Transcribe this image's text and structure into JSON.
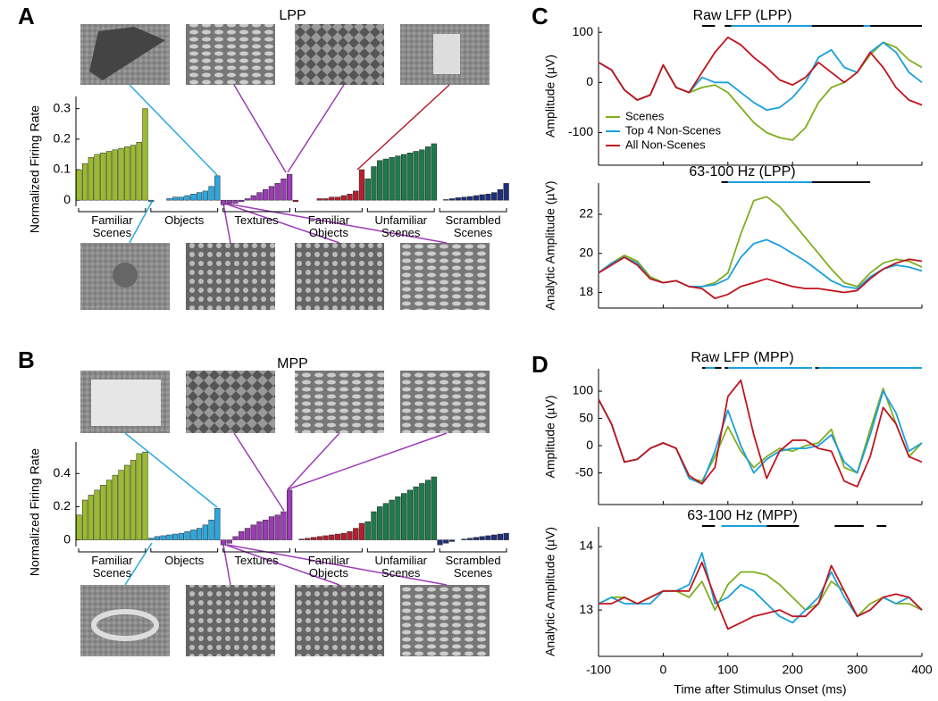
{
  "chart_data": [
    {
      "type": "grouped-bar",
      "panel": "A",
      "title": "LPP",
      "ylabel": "Normalized Firing Rate",
      "ylim": [
        -0.02,
        0.34
      ],
      "yticks": [
        0,
        0.1,
        0.2,
        0.3
      ],
      "groups": [
        {
          "name": "Familiar Scenes",
          "color": "#9bbb2a",
          "values": [
            0.1,
            0.12,
            0.14,
            0.15,
            0.155,
            0.16,
            0.165,
            0.17,
            0.175,
            0.18,
            0.19,
            0.3
          ]
        },
        {
          "name": "Objects",
          "color": "#2aa8e0",
          "values": [
            -0.005,
            0.0,
            0.0,
            0.005,
            0.01,
            0.01,
            0.015,
            0.02,
            0.025,
            0.03,
            0.045,
            0.08
          ]
        },
        {
          "name": "Textures",
          "color": "#9b3cb5",
          "values": [
            -0.015,
            -0.01,
            -0.01,
            -0.005,
            0.005,
            0.015,
            0.025,
            0.035,
            0.045,
            0.055,
            0.07,
            0.085
          ]
        },
        {
          "name": "Familiar Objects",
          "color": "#b5202e",
          "values": [
            -0.005,
            0,
            0,
            0,
            0.005,
            0.005,
            0.01,
            0.01,
            0.015,
            0.02,
            0.03,
            0.1
          ]
        },
        {
          "name": "Unfamiliar Scenes",
          "color": "#1e7a4a",
          "values": [
            0.07,
            0.11,
            0.13,
            0.135,
            0.14,
            0.145,
            0.15,
            0.155,
            0.16,
            0.165,
            0.175,
            0.185
          ]
        },
        {
          "name": "Scrambled Scenes",
          "color": "#1f2f7a",
          "values": [
            0,
            0.002,
            0.005,
            0.008,
            0.01,
            0.012,
            0.015,
            0.018,
            0.02,
            0.025,
            0.035,
            0.055
          ]
        }
      ]
    },
    {
      "type": "grouped-bar",
      "panel": "B",
      "title": "MPP",
      "ylabel": "Normalized Firing Rate",
      "ylim": [
        -0.04,
        0.59
      ],
      "yticks": [
        0,
        0.2,
        0.4
      ],
      "groups": [
        {
          "name": "Familiar Scenes",
          "color": "#9bbb2a",
          "values": [
            0.15,
            0.24,
            0.27,
            0.3,
            0.33,
            0.36,
            0.39,
            0.42,
            0.45,
            0.48,
            0.52,
            0.53
          ]
        },
        {
          "name": "Objects",
          "color": "#2aa8e0",
          "values": [
            0.01,
            0.02,
            0.025,
            0.03,
            0.035,
            0.04,
            0.05,
            0.06,
            0.07,
            0.09,
            0.12,
            0.19
          ]
        },
        {
          "name": "Textures",
          "color": "#9b3cb5",
          "values": [
            -0.03,
            -0.02,
            0.02,
            0.05,
            0.07,
            0.09,
            0.11,
            0.12,
            0.14,
            0.15,
            0.17,
            0.3
          ]
        },
        {
          "name": "Familiar Objects",
          "color": "#b5202e",
          "values": [
            0,
            0.005,
            0.01,
            0.015,
            0.02,
            0.025,
            0.03,
            0.035,
            0.04,
            0.05,
            0.07,
            0.1
          ]
        },
        {
          "name": "Unfamiliar Scenes",
          "color": "#1e7a4a",
          "values": [
            0.11,
            0.17,
            0.2,
            0.22,
            0.24,
            0.26,
            0.28,
            0.3,
            0.32,
            0.34,
            0.36,
            0.38
          ]
        },
        {
          "name": "Scrambled Scenes",
          "color": "#1f2f7a",
          "values": [
            -0.03,
            -0.02,
            -0.01,
            0,
            0.005,
            0.01,
            0.015,
            0.02,
            0.025,
            0.03,
            0.035,
            0.04
          ]
        }
      ]
    },
    {
      "type": "line",
      "panel": "C",
      "title": "Raw LFP (LPP)",
      "ylabel": "Amplitude (µV)",
      "x": [
        -100,
        -80,
        -60,
        -40,
        -20,
        0,
        20,
        40,
        60,
        80,
        100,
        120,
        140,
        160,
        180,
        200,
        220,
        240,
        260,
        280,
        300,
        320,
        340,
        360,
        380,
        400
      ],
      "xlim": [
        -100,
        400
      ],
      "xticks": [
        -100,
        0,
        100,
        200,
        300,
        400
      ],
      "xtick_labels": false,
      "ylim": [
        -165,
        111
      ],
      "yticks": [
        -100,
        0,
        100
      ],
      "legend": "lower left",
      "series": [
        {
          "name": "Scenes",
          "color": "#7fae1e",
          "values": [
            40,
            25,
            -15,
            -35,
            -25,
            35,
            -10,
            -20,
            -10,
            -5,
            -20,
            -50,
            -80,
            -100,
            -110,
            -115,
            -90,
            -40,
            -10,
            0,
            20,
            55,
            80,
            70,
            45,
            30
          ]
        },
        {
          "name": "Top 4 Non-Scenes",
          "color": "#1a9fdc",
          "values": [
            40,
            25,
            -15,
            -35,
            -25,
            35,
            -10,
            -20,
            10,
            0,
            0,
            -20,
            -40,
            -55,
            -50,
            -30,
            0,
            50,
            65,
            30,
            20,
            60,
            80,
            60,
            20,
            0
          ]
        },
        {
          "name": "All Non-Scenes",
          "color": "#c0151f",
          "values": [
            40,
            25,
            -15,
            -35,
            -25,
            35,
            -10,
            -20,
            20,
            60,
            90,
            75,
            50,
            30,
            5,
            -5,
            10,
            40,
            20,
            0,
            20,
            60,
            30,
            -10,
            -35,
            -45
          ]
        }
      ],
      "sig_bars": [
        {
          "color": "#000000",
          "start": 60,
          "end": 80
        },
        {
          "color": "#000000",
          "start": 95,
          "end": 310
        },
        {
          "color": "#1a9fdc",
          "start": 105,
          "end": 230
        },
        {
          "color": "#1a9fdc",
          "start": 310,
          "end": 400
        },
        {
          "color": "#000000",
          "start": 320,
          "end": 400
        }
      ]
    },
    {
      "type": "line",
      "panel": null,
      "title": "63-100 Hz (LPP)",
      "ylabel": "Analytic Amplitude (µV)",
      "x": [
        -100,
        -80,
        -60,
        -40,
        -20,
        0,
        20,
        40,
        60,
        80,
        100,
        120,
        140,
        160,
        180,
        200,
        220,
        240,
        260,
        280,
        300,
        320,
        340,
        360,
        380,
        400
      ],
      "xlim": [
        -100,
        400
      ],
      "xticks": [
        -100,
        0,
        100,
        200,
        300,
        400
      ],
      "xtick_labels": false,
      "ylim": [
        17.2,
        23.6
      ],
      "yticks": [
        18,
        20,
        22
      ],
      "series": [
        {
          "color": "#7fae1e",
          "values": [
            19,
            19.5,
            19.9,
            19.6,
            18.8,
            18.5,
            18.6,
            18.3,
            18.3,
            18.5,
            19,
            21,
            22.7,
            22.9,
            22.4,
            21.6,
            20.8,
            20,
            19.2,
            18.5,
            18.3,
            19,
            19.5,
            19.7,
            19.6,
            19.3
          ]
        },
        {
          "color": "#1a9fdc",
          "values": [
            19,
            19.5,
            19.8,
            19.5,
            18.7,
            18.5,
            18.6,
            18.3,
            18.3,
            18.4,
            18.7,
            19.8,
            20.5,
            20.7,
            20.4,
            20,
            19.6,
            19.1,
            18.6,
            18.3,
            18.2,
            18.8,
            19.2,
            19.4,
            19.3,
            19.1
          ]
        },
        {
          "color": "#c0151f",
          "values": [
            19,
            19.4,
            19.8,
            19.4,
            18.7,
            18.5,
            18.6,
            18.3,
            18.2,
            17.7,
            17.9,
            18.3,
            18.5,
            18.7,
            18.5,
            18.3,
            18.2,
            18.2,
            18.1,
            18,
            18.1,
            18.7,
            19.2,
            19.5,
            19.7,
            19.6
          ]
        }
      ],
      "sig_bars": [
        {
          "color": "#000000",
          "start": 90,
          "end": 320
        },
        {
          "color": "#1a9fdc",
          "start": 100,
          "end": 230
        }
      ]
    },
    {
      "type": "line",
      "panel": "D",
      "title": "Raw LFP (MPP)",
      "ylabel": "Amplitude (µV)",
      "x": [
        -100,
        -80,
        -60,
        -40,
        -20,
        0,
        20,
        40,
        60,
        80,
        100,
        120,
        140,
        160,
        180,
        200,
        220,
        240,
        260,
        280,
        300,
        320,
        340,
        360,
        380,
        400
      ],
      "xlim": [
        -100,
        400
      ],
      "xticks": [
        -100,
        0,
        100,
        200,
        300,
        400
      ],
      "xtick_labels": false,
      "ylim": [
        -108,
        141
      ],
      "yticks": [
        -50,
        0,
        50,
        100
      ],
      "series": [
        {
          "color": "#7fae1e",
          "values": [
            85,
            40,
            -30,
            -25,
            -5,
            5,
            -5,
            -60,
            -65,
            -20,
            35,
            -10,
            -40,
            -20,
            -5,
            -10,
            0,
            5,
            30,
            -40,
            -50,
            30,
            105,
            40,
            -20,
            5
          ]
        },
        {
          "color": "#1a9fdc",
          "values": [
            85,
            40,
            -30,
            -25,
            -5,
            5,
            -5,
            -60,
            -70,
            -10,
            65,
            0,
            -50,
            -25,
            -10,
            -5,
            -5,
            0,
            20,
            -30,
            -50,
            20,
            100,
            60,
            -10,
            5
          ]
        },
        {
          "color": "#c0151f",
          "values": [
            85,
            40,
            -30,
            -25,
            -5,
            5,
            -5,
            -55,
            -70,
            -40,
            90,
            120,
            20,
            -60,
            -10,
            10,
            10,
            -5,
            -10,
            -65,
            -75,
            -20,
            70,
            40,
            -20,
            -30
          ]
        }
      ],
      "sig_bars": [
        {
          "color": "#000000",
          "start": 60,
          "end": 90
        },
        {
          "color": "#1a9fdc",
          "start": 65,
          "end": 80
        },
        {
          "color": "#000000",
          "start": 95,
          "end": 230
        },
        {
          "color": "#1a9fdc",
          "start": 100,
          "end": 230
        },
        {
          "color": "#000000",
          "start": 235,
          "end": 400
        },
        {
          "color": "#1a9fdc",
          "start": 240,
          "end": 400
        }
      ]
    },
    {
      "type": "line",
      "panel": null,
      "title": "63-100 Hz (MPP)",
      "ylabel": "Analytic Amplitude (µV)",
      "xlabel": "Time after Stimulus Onset (ms)",
      "x": [
        -100,
        -80,
        -60,
        -40,
        -20,
        0,
        20,
        40,
        60,
        80,
        100,
        120,
        140,
        160,
        180,
        200,
        220,
        240,
        260,
        280,
        300,
        320,
        340,
        360,
        380,
        400
      ],
      "xlim": [
        -100,
        400
      ],
      "xticks": [
        -100,
        0,
        100,
        200,
        300,
        400
      ],
      "xtick_labels": true,
      "ylim": [
        12.27,
        14.31
      ],
      "yticks": [
        13,
        14
      ],
      "series": [
        {
          "color": "#7fae1e",
          "values": [
            13.1,
            13.2,
            13.2,
            13.1,
            13.2,
            13.3,
            13.3,
            13.2,
            13.45,
            13.0,
            13.4,
            13.6,
            13.6,
            13.55,
            13.4,
            13.2,
            13.0,
            13.1,
            13.45,
            13.3,
            12.9,
            13.1,
            13.2,
            13.1,
            13.1,
            13.0
          ]
        },
        {
          "color": "#1a9fdc",
          "values": [
            13.1,
            13.2,
            13.1,
            13.1,
            13.1,
            13.3,
            13.3,
            13.4,
            13.9,
            13.1,
            13.2,
            13.4,
            13.3,
            13.1,
            12.9,
            12.8,
            13.0,
            13.2,
            13.6,
            13.2,
            12.9,
            13.0,
            13.2,
            13.1,
            13.2,
            13.0
          ]
        },
        {
          "color": "#c0151f",
          "values": [
            13.1,
            13.1,
            13.2,
            13.1,
            13.2,
            13.3,
            13.3,
            13.3,
            13.75,
            13.2,
            12.7,
            12.8,
            12.9,
            12.95,
            13.0,
            12.9,
            12.9,
            13.1,
            13.7,
            13.3,
            12.9,
            13.0,
            13.2,
            13.25,
            13.2,
            13.0
          ]
        }
      ],
      "sig_bars": [
        {
          "color": "#000000",
          "start": 60,
          "end": 80
        },
        {
          "color": "#000000",
          "start": 90,
          "end": 210
        },
        {
          "color": "#1a9fdc",
          "start": 90,
          "end": 160
        },
        {
          "color": "#000000",
          "start": 265,
          "end": 310
        },
        {
          "color": "#000000",
          "start": 330,
          "end": 345
        }
      ]
    }
  ]
}
